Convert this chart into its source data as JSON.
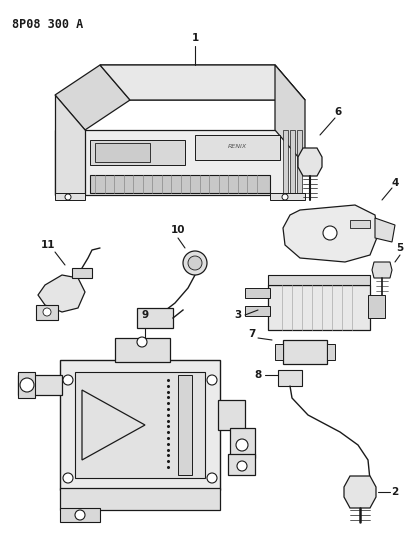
{
  "title": "8P08 300 A",
  "bg": "#ffffff",
  "lc": "#1a1a1a",
  "figsize": [
    4.05,
    5.33
  ],
  "dpi": 100
}
